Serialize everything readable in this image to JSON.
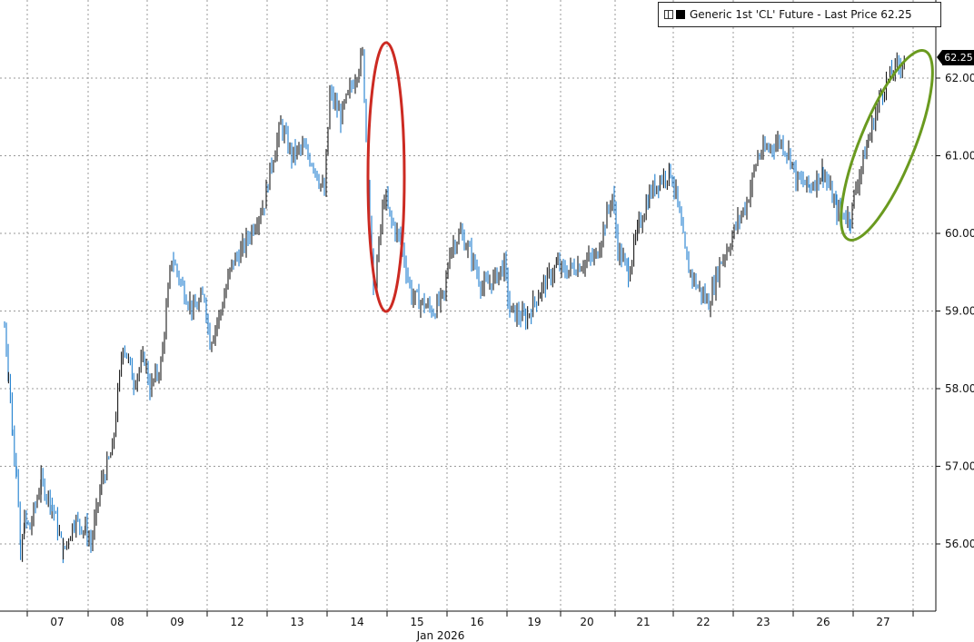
{
  "legend": {
    "label": "Generic 1st 'CL' Future - Last Price 62.25"
  },
  "last_price_tag": "62.25",
  "colors": {
    "up": "#1a1a1a",
    "down": "#1f7fcf",
    "grid": "#9a9a9a",
    "red_ellipse": "#cc2a22",
    "green_ellipse": "#6a9a1f"
  },
  "chart_data": {
    "type": "line",
    "title": "",
    "xlabel": "Jan 2026",
    "ylabel": "",
    "grid": true,
    "legend_position": "top-right",
    "ylim": [
      55.1,
      63.0
    ],
    "y_ticks": [
      56.0,
      57.0,
      58.0,
      59.0,
      60.0,
      61.0,
      62.0
    ],
    "y_tick_labels": [
      "56.00",
      "57.00",
      "58.00",
      "59.00",
      "60.00",
      "61.00",
      "62.00"
    ],
    "x_ticks": [
      "07",
      "08",
      "09",
      "12",
      "13",
      "14",
      "15",
      "16",
      "19",
      "20",
      "21",
      "22",
      "23",
      "26",
      "27"
    ],
    "x_sublabel": "Jan 2026",
    "series": [
      {
        "name": "Generic 1st 'CL' Future - Last Price 62.25",
        "points": [
          [
            "06",
            58.8
          ],
          [
            "06",
            58.2
          ],
          [
            "06",
            57.4
          ],
          [
            "06",
            57.0
          ],
          [
            "06",
            55.8
          ],
          [
            "06",
            56.3
          ],
          [
            "07",
            56.2
          ],
          [
            "07",
            56.8
          ],
          [
            "07",
            56.5
          ],
          [
            "07",
            55.9
          ],
          [
            "07",
            56.3
          ],
          [
            "07",
            56.2
          ],
          [
            "08",
            56.0
          ],
          [
            "08",
            56.8
          ],
          [
            "08",
            57.2
          ],
          [
            "08",
            58.6
          ],
          [
            "08",
            58.1
          ],
          [
            "08",
            58.4
          ],
          [
            "09",
            58.0
          ],
          [
            "09",
            58.3
          ],
          [
            "09",
            59.7
          ],
          [
            "09",
            59.3
          ],
          [
            "09",
            59.0
          ],
          [
            "09",
            59.2
          ],
          [
            "12",
            58.6
          ],
          [
            "12",
            59.0
          ],
          [
            "12",
            59.6
          ],
          [
            "12",
            59.8
          ],
          [
            "12",
            60.1
          ],
          [
            "12",
            60.4
          ],
          [
            "13",
            60.8
          ],
          [
            "13",
            61.4
          ],
          [
            "13",
            61.0
          ],
          [
            "13",
            61.1
          ],
          [
            "13",
            60.9
          ],
          [
            "13",
            60.5
          ],
          [
            "14",
            61.8
          ],
          [
            "14",
            61.5
          ],
          [
            "14",
            61.9
          ],
          [
            "14",
            62.3
          ],
          [
            "14",
            59.2
          ],
          [
            "14",
            60.5
          ],
          [
            "15",
            60.2
          ],
          [
            "15",
            59.9
          ],
          [
            "15",
            59.2
          ],
          [
            "15",
            59.1
          ],
          [
            "15",
            59.0
          ],
          [
            "15",
            59.2
          ],
          [
            "16",
            59.8
          ],
          [
            "16",
            60.0
          ],
          [
            "16",
            59.7
          ],
          [
            "16",
            59.3
          ],
          [
            "16",
            59.4
          ],
          [
            "16",
            59.6
          ],
          [
            "19",
            59.0
          ],
          [
            "19",
            58.9
          ],
          [
            "19",
            59.3
          ],
          [
            "19",
            59.6
          ],
          [
            "20",
            59.5
          ],
          [
            "20",
            59.6
          ],
          [
            "20",
            59.7
          ],
          [
            "20",
            60.5
          ],
          [
            "21",
            59.8
          ],
          [
            "21",
            59.5
          ],
          [
            "21",
            60.1
          ],
          [
            "21",
            60.5
          ],
          [
            "21",
            60.7
          ],
          [
            "21",
            60.8
          ],
          [
            "22",
            60.5
          ],
          [
            "22",
            59.6
          ],
          [
            "22",
            59.3
          ],
          [
            "22",
            59.1
          ],
          [
            "22",
            59.6
          ],
          [
            "22",
            59.9
          ],
          [
            "23",
            60.1
          ],
          [
            "23",
            60.4
          ],
          [
            "23",
            61.0
          ],
          [
            "23",
            61.1
          ],
          [
            "23",
            61.2
          ],
          [
            "23",
            61.0
          ],
          [
            "26",
            60.7
          ],
          [
            "26",
            60.6
          ],
          [
            "26",
            60.8
          ],
          [
            "26",
            60.3
          ],
          [
            "26",
            60.2
          ],
          [
            "27",
            60.6
          ],
          [
            "27",
            61.2
          ],
          [
            "27",
            61.8
          ],
          [
            "27",
            62.1
          ],
          [
            "27",
            62.25
          ]
        ]
      }
    ],
    "annotations": [
      {
        "type": "ellipse",
        "color": "red",
        "around": "Jan 14 spike to ~62.3 and drop"
      },
      {
        "type": "ellipse",
        "color": "green",
        "around": "Jan 27 rally to 62.25"
      }
    ]
  }
}
